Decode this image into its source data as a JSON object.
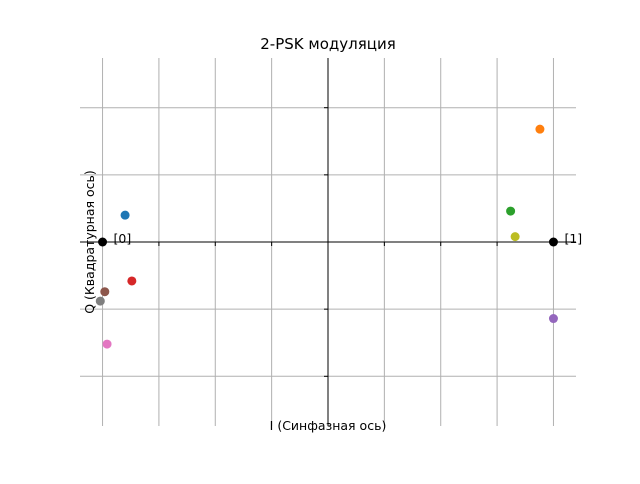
{
  "chart_data": {
    "type": "scatter",
    "title": "2-PSK модуляция",
    "xlabel": "I (Синфазная ось)",
    "ylabel": "Q (Квадратурная ось)",
    "xlim": [
      -1.1,
      1.1
    ],
    "ylim": [
      -1.37,
      1.37
    ],
    "x_gridlines": [
      -1.0,
      -0.75,
      -0.5,
      -0.25,
      0.0,
      0.25,
      0.5,
      0.75,
      1.0
    ],
    "y_gridlines": [
      -1.0,
      -0.5,
      0.0,
      0.5,
      1.0
    ],
    "grid": true,
    "tick_labels_visible": false,
    "frame": false,
    "axes_through_origin": true,
    "constellation": [
      {
        "label": "[0]",
        "x": -1.0,
        "y": 0.0,
        "color": "#000000"
      },
      {
        "label": "[1]",
        "x": 1.0,
        "y": 0.0,
        "color": "#000000"
      }
    ],
    "series": [
      {
        "x": -0.9,
        "y": 0.2,
        "color": "#1f77b4"
      },
      {
        "x": 0.94,
        "y": 0.84,
        "color": "#ff7f0e"
      },
      {
        "x": 0.81,
        "y": 0.23,
        "color": "#2ca02c"
      },
      {
        "x": -0.87,
        "y": -0.29,
        "color": "#d62728"
      },
      {
        "x": 1.0,
        "y": -0.57,
        "color": "#9467bd"
      },
      {
        "x": -0.99,
        "y": -0.37,
        "color": "#8c564b"
      },
      {
        "x": -0.98,
        "y": -0.76,
        "color": "#e377c2"
      },
      {
        "x": -1.01,
        "y": -0.44,
        "color": "#7f7f7f"
      },
      {
        "x": 0.83,
        "y": 0.04,
        "color": "#bcbd22"
      }
    ]
  }
}
